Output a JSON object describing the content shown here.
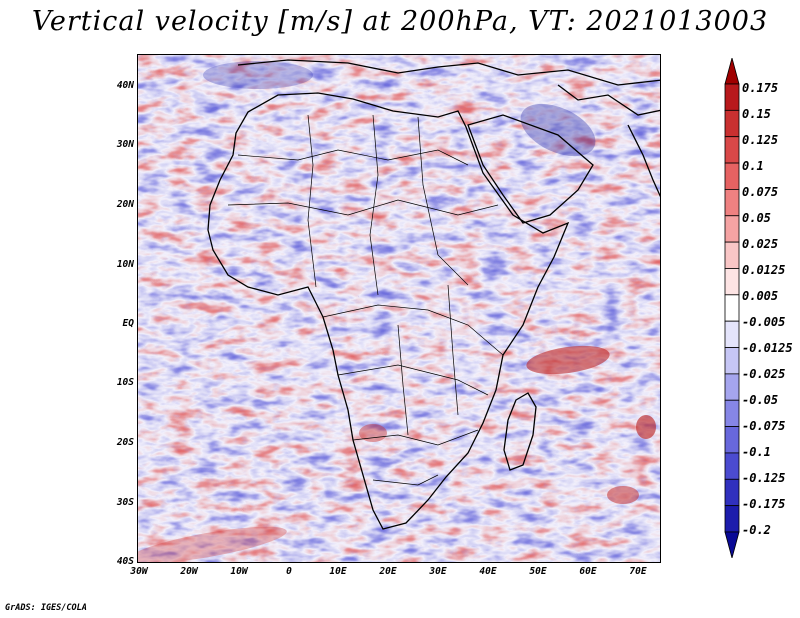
{
  "title": "Vertical velocity [m/s] at 200hPa, VT: 2021013003",
  "credit": "GrADS: IGES/COLA",
  "map": {
    "projection": "lat-lon",
    "region": "Africa and surrounding oceans",
    "lon_range": [
      -30,
      75
    ],
    "lat_range": [
      -40,
      45
    ],
    "x_ticks": [
      "30W",
      "20W",
      "10W",
      "0",
      "10E",
      "20E",
      "30E",
      "40E",
      "50E",
      "60E",
      "70E"
    ],
    "y_ticks": [
      "40N",
      "30N",
      "20N",
      "10N",
      "EQ",
      "10S",
      "20S",
      "30S",
      "40S"
    ]
  },
  "colorbar": {
    "labels": [
      "0.175",
      "0.15",
      "0.125",
      "0.1",
      "0.075",
      "0.05",
      "0.025",
      "0.0125",
      "0.005",
      "-0.005",
      "-0.0125",
      "-0.025",
      "-0.05",
      "-0.075",
      "-0.1",
      "-0.125",
      "-0.175",
      "-0.2"
    ],
    "colors": [
      "#a00000",
      "#b8191c",
      "#c93030",
      "#d94848",
      "#e66262",
      "#ef8181",
      "#f5a3a3",
      "#f9c6c6",
      "#fde4e4",
      "#ffffff",
      "#e4e4fb",
      "#c6c6f5",
      "#a5a5ee",
      "#8686e6",
      "#6868dc",
      "#4b4bd0",
      "#3030be",
      "#1c1cac",
      "#0a0a96"
    ]
  },
  "colors": {
    "positive": "#e05050",
    "negative": "#4646d2",
    "background": "#ffffff"
  }
}
